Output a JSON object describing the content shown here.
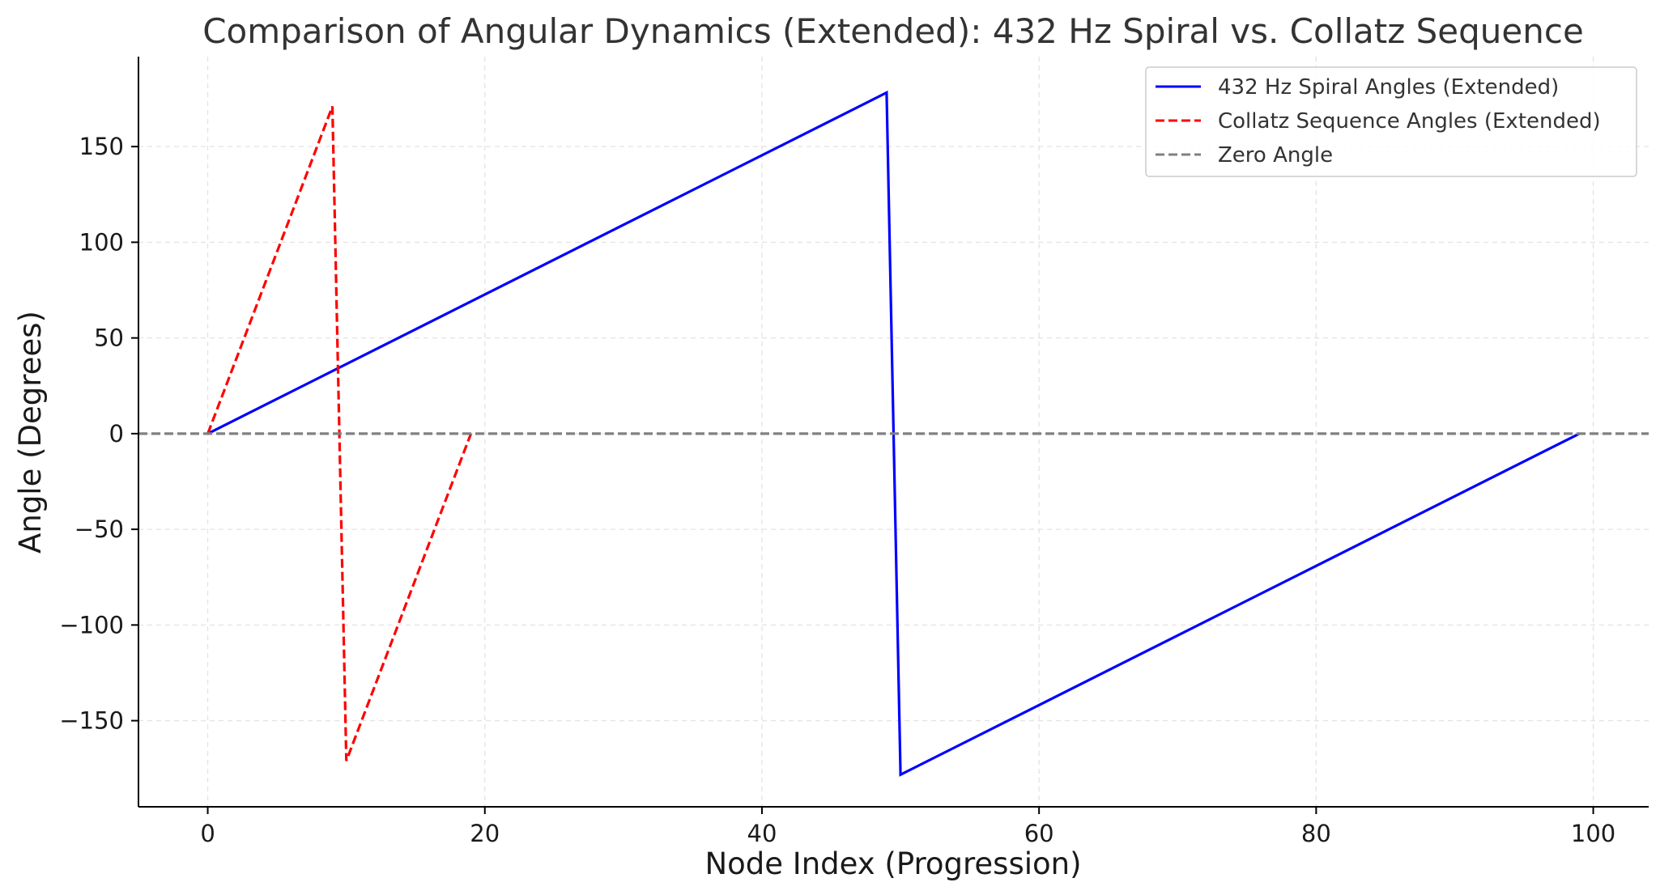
{
  "chart_data": {
    "type": "line",
    "title": "Comparison of Angular Dynamics (Extended): 432 Hz Spiral vs. Collatz Sequence",
    "xlabel": "Node Index (Progression)",
    "ylabel": "Angle (Degrees)",
    "xlim": [
      -5,
      104
    ],
    "ylim": [
      -195,
      197
    ],
    "xticks": [
      0,
      20,
      40,
      60,
      80,
      100
    ],
    "xtick_labels": [
      "0",
      "20",
      "40",
      "60",
      "80",
      "100"
    ],
    "yticks": [
      150,
      100,
      50,
      0,
      -50,
      -100,
      -150
    ],
    "ytick_labels": [
      "150",
      "100",
      "50",
      "0",
      "−50",
      "−100",
      "−150"
    ],
    "grid": true,
    "legend_position": "top-right",
    "series": [
      {
        "name": "432 Hz Spiral Angles (Extended)",
        "color": "#0000ff",
        "style": "solid",
        "points": [
          [
            0,
            0
          ],
          [
            49,
            178.2
          ],
          [
            50,
            -178.2
          ],
          [
            99,
            0
          ]
        ]
      },
      {
        "name": "Collatz Sequence Angles (Extended)",
        "color": "#ff0000",
        "style": "dashed",
        "points": [
          [
            0,
            0
          ],
          [
            9,
            171
          ],
          [
            10,
            -171
          ],
          [
            19,
            0
          ]
        ]
      },
      {
        "name": "Zero Angle",
        "color": "#808080",
        "style": "dashed",
        "hline": 0
      }
    ]
  }
}
